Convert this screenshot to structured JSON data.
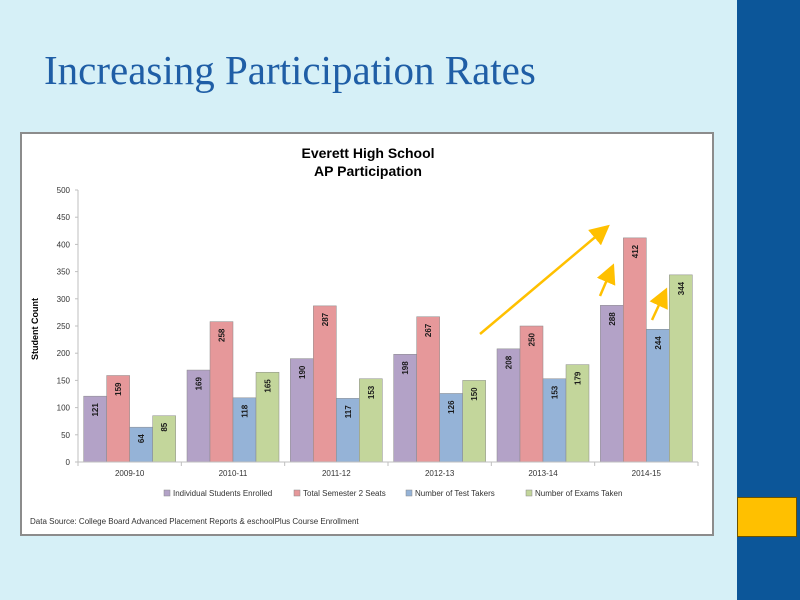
{
  "slide": {
    "title": "Increasing Participation Rates"
  },
  "colors": {
    "background": "#d6f0f7",
    "title": "#1f5ea6",
    "sidebar": "#0c5699",
    "accent": "#ffc000",
    "arrows": "#ffc000"
  },
  "chart_data": {
    "type": "bar",
    "title": "Everett High School",
    "subtitle": "AP Participation",
    "xlabel": "",
    "ylabel": "Student Count",
    "ylim": [
      0,
      500
    ],
    "yticks": [
      0,
      50,
      100,
      150,
      200,
      250,
      300,
      350,
      400,
      450,
      500
    ],
    "grid": false,
    "legend": "bottom",
    "categories": [
      "2009-10",
      "2010-11",
      "2011-12",
      "2012-13",
      "2013-14",
      "2014-15"
    ],
    "series": [
      {
        "name": "Individual Students Enrolled",
        "color": "#b3a2c7",
        "values": [
          121,
          169,
          190,
          198,
          208,
          288
        ]
      },
      {
        "name": "Total Semester 2 Seats",
        "color": "#e6989a",
        "values": [
          159,
          258,
          287,
          267,
          250,
          412
        ]
      },
      {
        "name": "Number of Test Takers",
        "color": "#95b3d7",
        "values": [
          64,
          118,
          117,
          126,
          153,
          244
        ]
      },
      {
        "name": "Number of Exams Taken",
        "color": "#c3d69b",
        "values": [
          85,
          165,
          153,
          150,
          179,
          344
        ]
      }
    ],
    "source_note": "Data Source: College Board Advanced Placement Reports & eschoolPlus Course Enrollment"
  }
}
